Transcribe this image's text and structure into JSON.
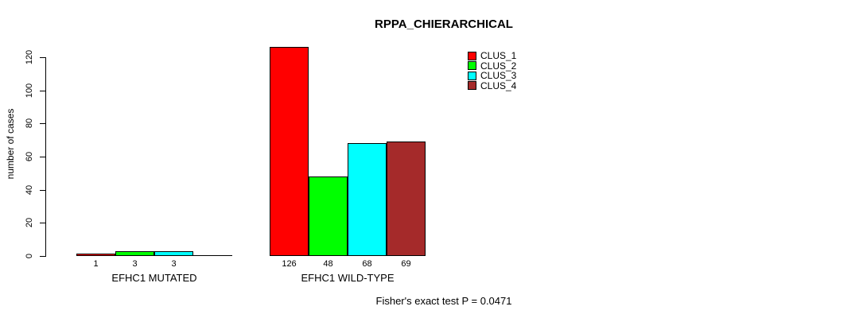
{
  "chart_data": {
    "type": "bar",
    "title": "RPPA_CHIERARCHICAL",
    "ylabel": "number of cases",
    "xlabel": "",
    "categories": [
      "EFHC1 MUTATED",
      "EFHC1 WILD-TYPE"
    ],
    "series": [
      {
        "name": "CLUS_1",
        "color": "#FF0000",
        "values": [
          1,
          126
        ]
      },
      {
        "name": "CLUS_2",
        "color": "#00FF00",
        "values": [
          3,
          48
        ]
      },
      {
        "name": "CLUS_3",
        "color": "#00FFFF",
        "values": [
          3,
          68
        ]
      },
      {
        "name": "CLUS_4",
        "color": "#A52A2A",
        "values": [
          0,
          69
        ]
      }
    ],
    "bar_value_labels": [
      [
        "1",
        "126"
      ],
      [
        "3",
        "48"
      ],
      [
        "3",
        "68"
      ],
      [
        "",
        "69"
      ]
    ],
    "yticks": [
      0,
      20,
      40,
      60,
      80,
      100,
      120
    ],
    "ylim": [
      0,
      126
    ],
    "grid": false,
    "legend": {
      "position": "top-right",
      "entries": [
        "CLUS_1",
        "CLUS_2",
        "CLUS_3",
        "CLUS_4"
      ]
    },
    "annotation": "Fisher's exact test P = 0.0471",
    "colors": {
      "bar_border": "#000000",
      "background": "#FFFFFF",
      "text": "#000000"
    }
  }
}
